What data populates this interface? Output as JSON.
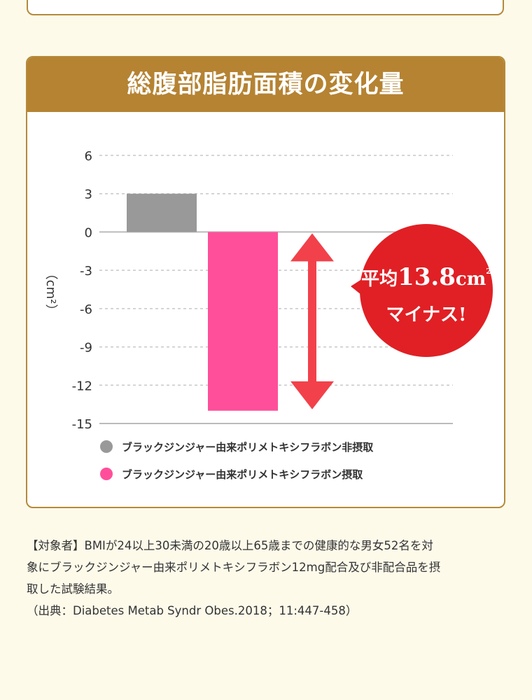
{
  "chart_data": {
    "type": "bar",
    "title": "総腹部脂肪面積の変化量",
    "ylabel": "（cm²）",
    "ylim": [
      -15,
      6
    ],
    "yticks": [
      6,
      3,
      0,
      -3,
      -6,
      -9,
      -12,
      -15
    ],
    "grid": true,
    "legend_position": "bottom-left",
    "series": [
      {
        "name": "ブラックジンジャー由来ポリメトキシフラボン非摂取",
        "value": 3,
        "color": "#999999"
      },
      {
        "name": "ブラックジンジャー由来ポリメトキシフラボン摂取",
        "value": -14,
        "color": "#ff4f9a"
      }
    ],
    "annotation": {
      "line1_prefix": "平均",
      "line1_value": "13.8",
      "line1_unit": "cm",
      "line1_sup": "2",
      "line2": "マイナス!",
      "bubble_color": "#e02025",
      "arrow_color": "#f2414a"
    }
  },
  "notes": {
    "line1": "【対象者】BMIが24以上30未満の20歳以上65歳までの健康的な男女52名を対",
    "line2": "象にブラックジンジャー由来ポリメトキシフラボン12mg配合及び非配合品を摂",
    "line3": "取した試験結果。",
    "source": "（出典：Diabetes Metab Syndr Obes.2018；11:447-458）"
  },
  "colors": {
    "background": "#fdfaea",
    "header": "#b58332",
    "border": "#b58a3a"
  }
}
